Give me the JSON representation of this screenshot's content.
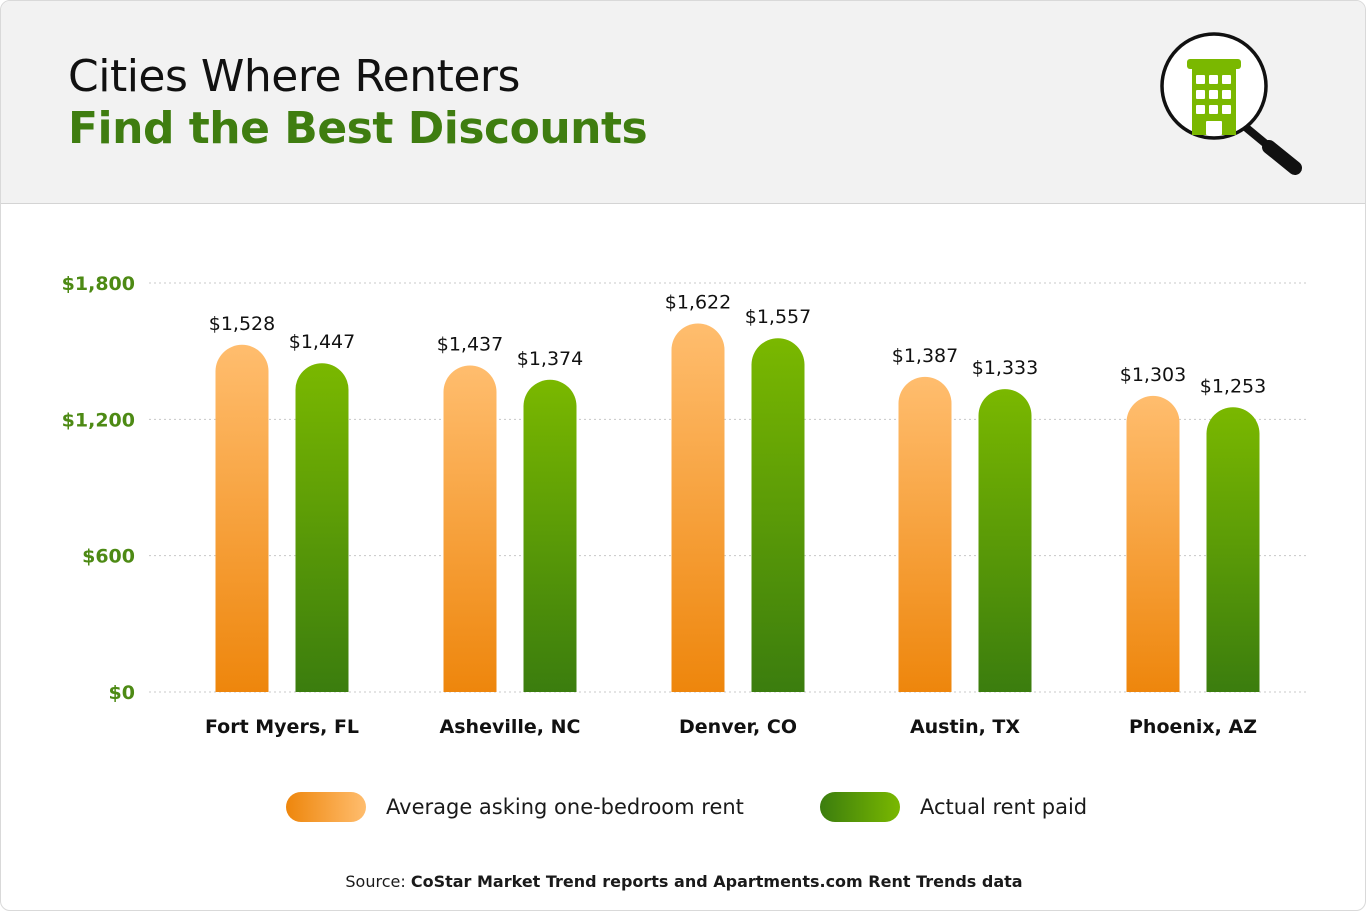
{
  "header": {
    "title_line1": "Cities Where Renters",
    "title_line2": "Find the Best Discounts",
    "icon": "building-magnifier-icon"
  },
  "colors": {
    "asking_top": "#ffbd6e",
    "asking_bottom": "#ee860c",
    "paid_top": "#7ab800",
    "paid_bottom": "#3b7d0e",
    "title_green": "#3f7d10",
    "axis_label_green": "#4d8a14"
  },
  "chart_data": {
    "type": "bar",
    "categories": [
      "Fort Myers, FL",
      "Asheville, NC",
      "Denver, CO",
      "Austin, TX",
      "Phoenix, AZ"
    ],
    "series": [
      {
        "name": "Average asking one-bedroom rent",
        "values": [
          1528,
          1437,
          1622,
          1387,
          1303
        ],
        "labels": [
          "$1,528",
          "$1,437",
          "$1,622",
          "$1,387",
          "$1,303"
        ]
      },
      {
        "name": "Actual rent paid",
        "values": [
          1447,
          1374,
          1557,
          1333,
          1253
        ],
        "labels": [
          "$1,447",
          "$1,374",
          "$1,557",
          "$1,333",
          "$1,253"
        ]
      }
    ],
    "ylim": [
      0,
      1800
    ],
    "yticks": [
      0,
      600,
      1200,
      1800
    ],
    "ytick_labels": [
      "$0",
      "$600",
      "$1,200",
      "$1,800"
    ],
    "grid": true,
    "legend_position": "bottom"
  },
  "source": {
    "prefix": "Source:",
    "text": "CoStar Market Trend reports and Apartments.com Rent Trends data"
  }
}
